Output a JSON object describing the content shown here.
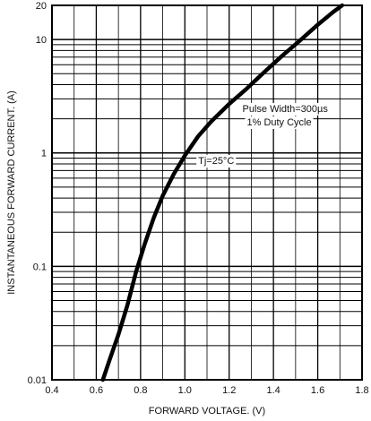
{
  "chart_data": {
    "type": "line",
    "xlabel": "FORWARD VOLTAGE. (V)",
    "ylabel": "INSTANTANEOUS FORWARD CURRENT. (A)",
    "xlim": [
      0.4,
      1.8
    ],
    "ylim": [
      0.01,
      20
    ],
    "y_scale": "log",
    "x_ticks": [
      "0.4",
      "0.6",
      "0.8",
      "1.0",
      "1.2",
      "1.4",
      "1.6",
      "1.8"
    ],
    "y_ticks": [
      {
        "value": 0.01,
        "label": "0.01"
      },
      {
        "value": 0.1,
        "label": "0.1"
      },
      {
        "value": 1,
        "label": "1"
      },
      {
        "value": 10,
        "label": "10"
      },
      {
        "value": 20,
        "label": "20"
      }
    ],
    "grid": true,
    "series": [
      {
        "x": [
          0.63,
          0.66,
          0.7,
          0.74,
          0.78,
          0.82,
          0.86,
          0.9,
          0.95,
          1.0,
          1.06,
          1.12,
          1.2,
          1.28,
          1.36,
          1.44,
          1.52,
          1.6,
          1.67,
          1.71
        ],
        "y": [
          0.01,
          0.015,
          0.025,
          0.045,
          0.09,
          0.16,
          0.27,
          0.42,
          0.65,
          0.95,
          1.4,
          1.9,
          2.7,
          3.7,
          5.2,
          7.2,
          9.8,
          13.5,
          17.5,
          20
        ]
      }
    ],
    "annotations": [
      {
        "text": "Pulse Width=300µs",
        "x": 1.26,
        "y": 2.3
      },
      {
        "text": "1% Duty Cycle",
        "x": 1.28,
        "y": 1.75
      },
      {
        "text": "Tj=25°C",
        "x": 1.06,
        "y": 0.8
      }
    ]
  }
}
